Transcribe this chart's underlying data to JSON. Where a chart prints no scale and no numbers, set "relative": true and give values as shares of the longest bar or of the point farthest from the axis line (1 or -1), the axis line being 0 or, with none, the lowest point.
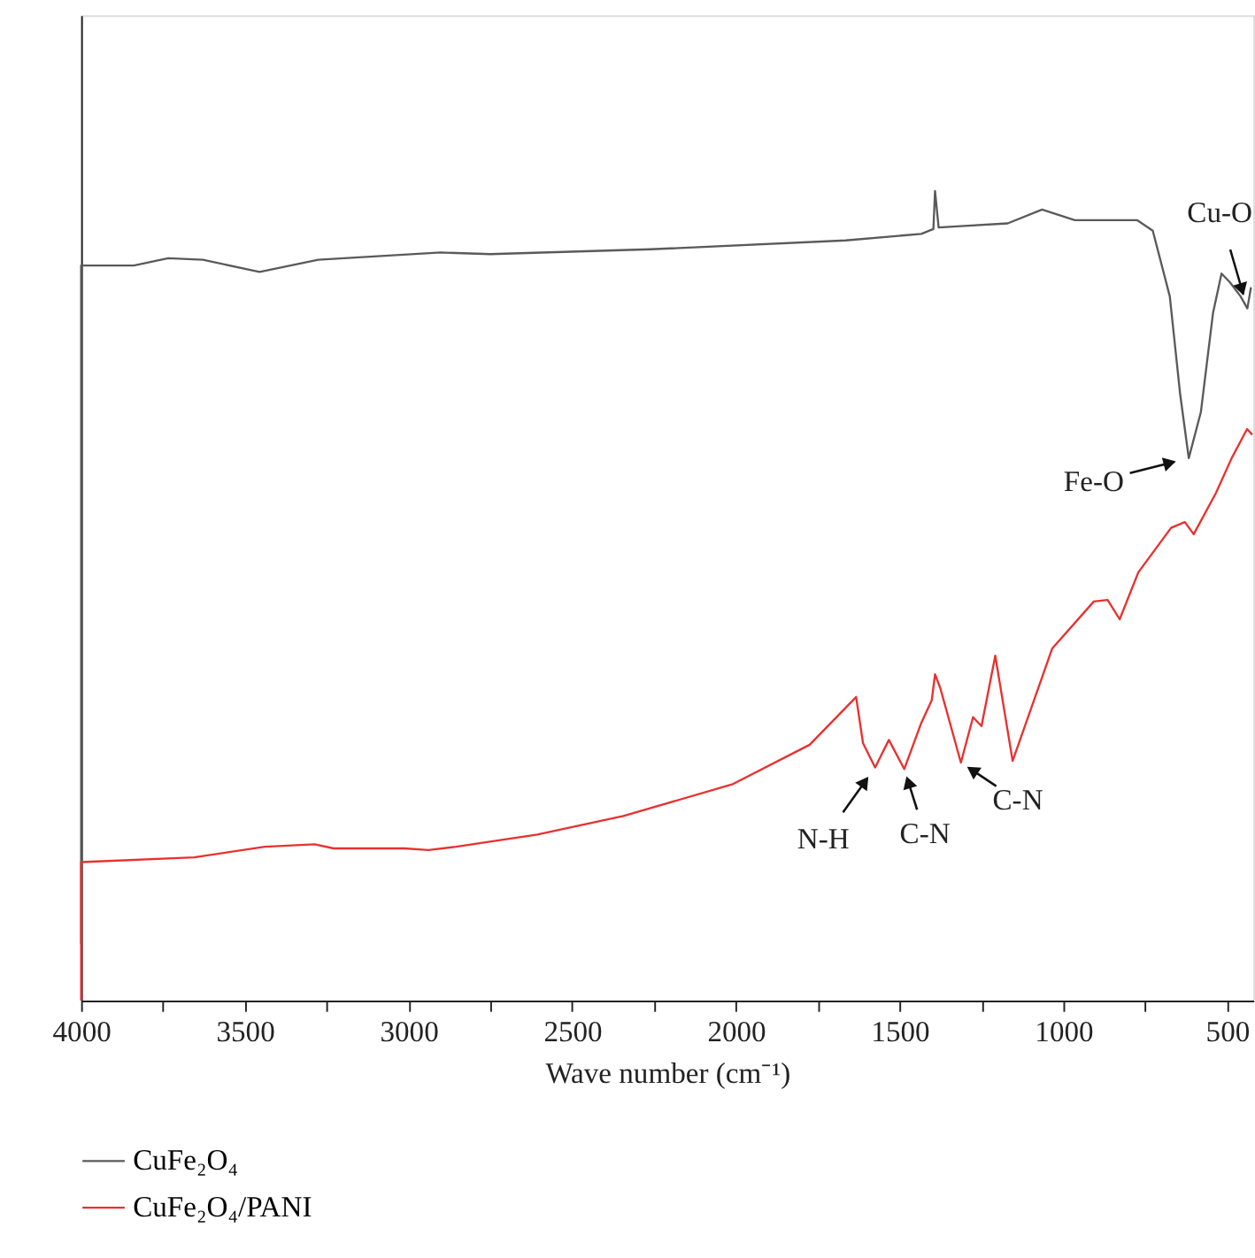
{
  "chart_data": {
    "type": "line",
    "relative": true,
    "xlabel": "Wave number (cm⁻¹)",
    "xlim": [
      4000,
      420
    ],
    "xticks": [
      4000,
      {
        "value": 3750,
        "label": null
      },
      3500,
      {
        "value": 3250,
        "label": null
      },
      3000,
      {
        "value": 2750,
        "label": null
      },
      2500,
      {
        "value": 2250,
        "label": null
      },
      2000,
      {
        "value": 1750,
        "label": null
      },
      1500,
      {
        "value": 1250,
        "label": null
      },
      1000,
      {
        "value": 750,
        "label": null
      },
      500
    ],
    "tick_labels": "x",
    "grid": false,
    "legend": "bottom left",
    "marker": "none",
    "line_style": "solid",
    "series": [
      {
        "name": "CuFe₂O₄",
        "color": "#5a5a5a",
        "x": [
          4000,
          4000,
          3839,
          3734,
          3628,
          3455,
          3276,
          2902,
          2750,
          2260,
          1665,
          1434,
          1397,
          1392,
          1381,
          1170,
          1065,
          965,
          775,
          727,
          675,
          643,
          617,
          580,
          543,
          517,
          491,
          459,
          438,
          427
        ],
        "values": [
          0.07,
          0.908,
          0.908,
          0.917,
          0.915,
          0.9,
          0.915,
          0.924,
          0.922,
          0.928,
          0.939,
          0.947,
          0.953,
          1.0,
          0.955,
          0.96,
          0.977,
          0.964,
          0.964,
          0.951,
          0.87,
          0.748,
          0.67,
          0.727,
          0.849,
          0.898,
          0.887,
          0.87,
          0.855,
          0.881
        ]
      },
      {
        "name": "CuFe₂O₄/PANI",
        "color": "#e8312f",
        "x": [
          4000,
          4000,
          3655,
          3439,
          3287,
          3229,
          3012,
          2939,
          2855,
          2607,
          2344,
          2012,
          1775,
          1633,
          1612,
          1575,
          1533,
          1486,
          1434,
          1402,
          1392,
          1376,
          1313,
          1276,
          1250,
          1208,
          1155,
          1034,
          907,
          865,
          828,
          771,
          671,
          629,
          602,
          534,
          486,
          439,
          423
        ],
        "values": [
          0,
          0.171,
          0.177,
          0.19,
          0.193,
          0.188,
          0.188,
          0.186,
          0.19,
          0.205,
          0.228,
          0.267,
          0.316,
          0.375,
          0.318,
          0.288,
          0.322,
          0.286,
          0.343,
          0.371,
          0.403,
          0.386,
          0.294,
          0.35,
          0.339,
          0.426,
          0.296,
          0.435,
          0.493,
          0.495,
          0.471,
          0.529,
          0.584,
          0.591,
          0.576,
          0.627,
          0.67,
          0.706,
          0.699
        ]
      }
    ],
    "annotations": [
      {
        "text": "Fe-O",
        "x": 617,
        "y": 0.67
      },
      {
        "text": "Cu-O",
        "x": 438,
        "y": 0.855
      },
      {
        "text": "N-H",
        "x": 1575,
        "y": 0.288
      },
      {
        "text": "C-N",
        "x": 1486,
        "y": 0.286
      },
      {
        "text": "C-N",
        "x": 1313,
        "y": 0.294
      }
    ]
  }
}
